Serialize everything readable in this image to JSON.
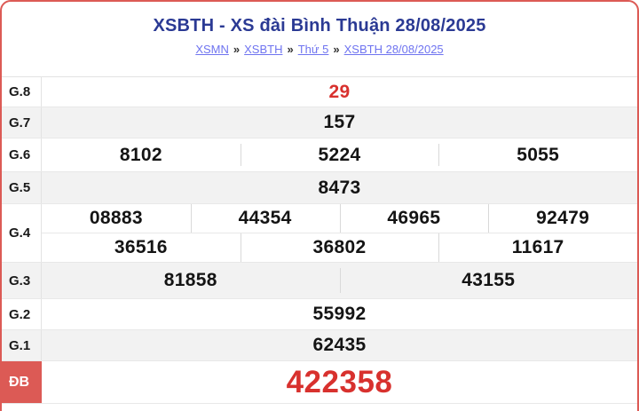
{
  "page": {
    "title": "XSBTH - XS đài Bình Thuận 28/08/2025",
    "breadcrumb": {
      "separator": "»",
      "items": [
        "XSMN",
        "XSBTH",
        "Thứ 5",
        "XSBTH 28/08/2025"
      ]
    }
  },
  "results": {
    "rows": [
      {
        "label": "G.8",
        "cells": [
          [
            "29"
          ]
        ]
      },
      {
        "label": "G.7",
        "cells": [
          [
            "157"
          ]
        ]
      },
      {
        "label": "G.6",
        "cells": [
          [
            "8102",
            "5224",
            "5055"
          ]
        ]
      },
      {
        "label": "G.5",
        "cells": [
          [
            "8473"
          ]
        ]
      },
      {
        "label": "G.4",
        "cells": [
          [
            "08883",
            "44354",
            "46965",
            "92479"
          ],
          [
            "36516",
            "36802",
            "11617"
          ]
        ]
      },
      {
        "label": "G.3",
        "cells": [
          [
            "81858",
            "43155"
          ]
        ]
      },
      {
        "label": "G.2",
        "cells": [
          [
            "55992"
          ]
        ]
      },
      {
        "label": "G.1",
        "cells": [
          [
            "62435"
          ]
        ]
      },
      {
        "label": "ĐB",
        "cells": [
          [
            "422358"
          ]
        ]
      }
    ]
  },
  "colors": {
    "accent_red": "#dc5a55",
    "value_red": "#d8312e",
    "title_navy": "#2b3a94",
    "link_purple": "#6f74f0",
    "alt_row_gray": "#f2f2f2"
  }
}
